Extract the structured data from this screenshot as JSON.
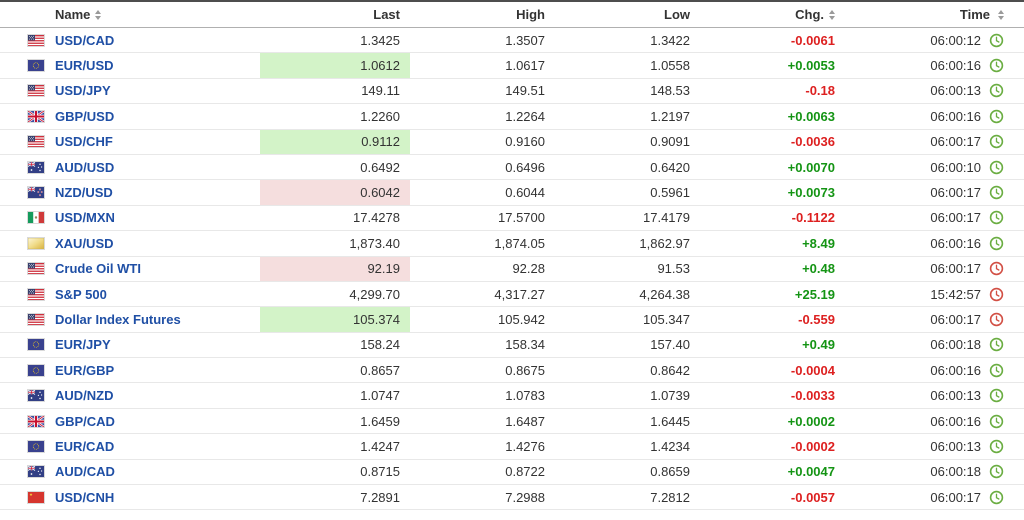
{
  "colors": {
    "link": "#1f4fa5",
    "positive": "#149414",
    "negative": "#dd2020",
    "flash_up_bg": "#d3f3c8",
    "flash_down_bg": "#f5dede",
    "clock_open": "#6aad41",
    "clock_closed": "#d24f44",
    "header_text": "#333333",
    "value_text": "#333333"
  },
  "table": {
    "headers": [
      {
        "label": "Name",
        "sortable": true
      },
      {
        "label": "Last",
        "sortable": false
      },
      {
        "label": "High",
        "sortable": false
      },
      {
        "label": "Low",
        "sortable": false
      },
      {
        "label": "Chg.",
        "sortable": true
      },
      {
        "label": "Time",
        "sortable": true
      }
    ],
    "rows": [
      {
        "name": "USD/CAD",
        "flag": "us",
        "last": "1.3425",
        "high": "1.3507",
        "low": "1.3422",
        "chg": "-0.0061",
        "chg_dir": "down",
        "flash": "none",
        "time": "06:00:12",
        "market": "open"
      },
      {
        "name": "EUR/USD",
        "flag": "eu",
        "last": "1.0612",
        "high": "1.0617",
        "low": "1.0558",
        "chg": "+0.0053",
        "chg_dir": "up",
        "flash": "up",
        "time": "06:00:16",
        "market": "open"
      },
      {
        "name": "USD/JPY",
        "flag": "us",
        "last": "149.11",
        "high": "149.51",
        "low": "148.53",
        "chg": "-0.18",
        "chg_dir": "down",
        "flash": "none",
        "time": "06:00:13",
        "market": "open"
      },
      {
        "name": "GBP/USD",
        "flag": "gb",
        "last": "1.2260",
        "high": "1.2264",
        "low": "1.2197",
        "chg": "+0.0063",
        "chg_dir": "up",
        "flash": "none",
        "time": "06:00:16",
        "market": "open"
      },
      {
        "name": "USD/CHF",
        "flag": "us",
        "last": "0.9112",
        "high": "0.9160",
        "low": "0.9091",
        "chg": "-0.0036",
        "chg_dir": "down",
        "flash": "up",
        "time": "06:00:17",
        "market": "open"
      },
      {
        "name": "AUD/USD",
        "flag": "au",
        "last": "0.6492",
        "high": "0.6496",
        "low": "0.6420",
        "chg": "+0.0070",
        "chg_dir": "up",
        "flash": "none",
        "time": "06:00:10",
        "market": "open"
      },
      {
        "name": "NZD/USD",
        "flag": "nz",
        "last": "0.6042",
        "high": "0.6044",
        "low": "0.5961",
        "chg": "+0.0073",
        "chg_dir": "up",
        "flash": "down",
        "time": "06:00:17",
        "market": "open"
      },
      {
        "name": "USD/MXN",
        "flag": "mx",
        "last": "17.4278",
        "high": "17.5700",
        "low": "17.4179",
        "chg": "-0.1122",
        "chg_dir": "down",
        "flash": "none",
        "time": "06:00:17",
        "market": "open"
      },
      {
        "name": "XAU/USD",
        "flag": "xau",
        "last": "1,873.40",
        "high": "1,874.05",
        "low": "1,862.97",
        "chg": "+8.49",
        "chg_dir": "up",
        "flash": "none",
        "time": "06:00:16",
        "market": "open"
      },
      {
        "name": "Crude Oil WTI",
        "flag": "us",
        "last": "92.19",
        "high": "92.28",
        "low": "91.53",
        "chg": "+0.48",
        "chg_dir": "up",
        "flash": "down",
        "time": "06:00:17",
        "market": "closed"
      },
      {
        "name": "S&P 500",
        "flag": "us",
        "last": "4,299.70",
        "high": "4,317.27",
        "low": "4,264.38",
        "chg": "+25.19",
        "chg_dir": "up",
        "flash": "none",
        "time": "15:42:57",
        "market": "closed"
      },
      {
        "name": "Dollar Index Futures",
        "flag": "us",
        "last": "105.374",
        "high": "105.942",
        "low": "105.347",
        "chg": "-0.559",
        "chg_dir": "down",
        "flash": "up",
        "time": "06:00:17",
        "market": "closed"
      },
      {
        "name": "EUR/JPY",
        "flag": "eu",
        "last": "158.24",
        "high": "158.34",
        "low": "157.40",
        "chg": "+0.49",
        "chg_dir": "up",
        "flash": "none",
        "time": "06:00:18",
        "market": "open"
      },
      {
        "name": "EUR/GBP",
        "flag": "eu",
        "last": "0.8657",
        "high": "0.8675",
        "low": "0.8642",
        "chg": "-0.0004",
        "chg_dir": "down",
        "flash": "none",
        "time": "06:00:16",
        "market": "open"
      },
      {
        "name": "AUD/NZD",
        "flag": "au",
        "last": "1.0747",
        "high": "1.0783",
        "low": "1.0739",
        "chg": "-0.0033",
        "chg_dir": "down",
        "flash": "none",
        "time": "06:00:13",
        "market": "open"
      },
      {
        "name": "GBP/CAD",
        "flag": "gb",
        "last": "1.6459",
        "high": "1.6487",
        "low": "1.6445",
        "chg": "+0.0002",
        "chg_dir": "up",
        "flash": "none",
        "time": "06:00:16",
        "market": "open"
      },
      {
        "name": "EUR/CAD",
        "flag": "eu",
        "last": "1.4247",
        "high": "1.4276",
        "low": "1.4234",
        "chg": "-0.0002",
        "chg_dir": "down",
        "flash": "none",
        "time": "06:00:13",
        "market": "open"
      },
      {
        "name": "AUD/CAD",
        "flag": "au",
        "last": "0.8715",
        "high": "0.8722",
        "low": "0.8659",
        "chg": "+0.0047",
        "chg_dir": "up",
        "flash": "none",
        "time": "06:00:18",
        "market": "open"
      },
      {
        "name": "USD/CNH",
        "flag": "cn",
        "last": "7.2891",
        "high": "7.2988",
        "low": "7.2812",
        "chg": "-0.0057",
        "chg_dir": "down",
        "flash": "none",
        "time": "06:00:17",
        "market": "open"
      }
    ]
  }
}
